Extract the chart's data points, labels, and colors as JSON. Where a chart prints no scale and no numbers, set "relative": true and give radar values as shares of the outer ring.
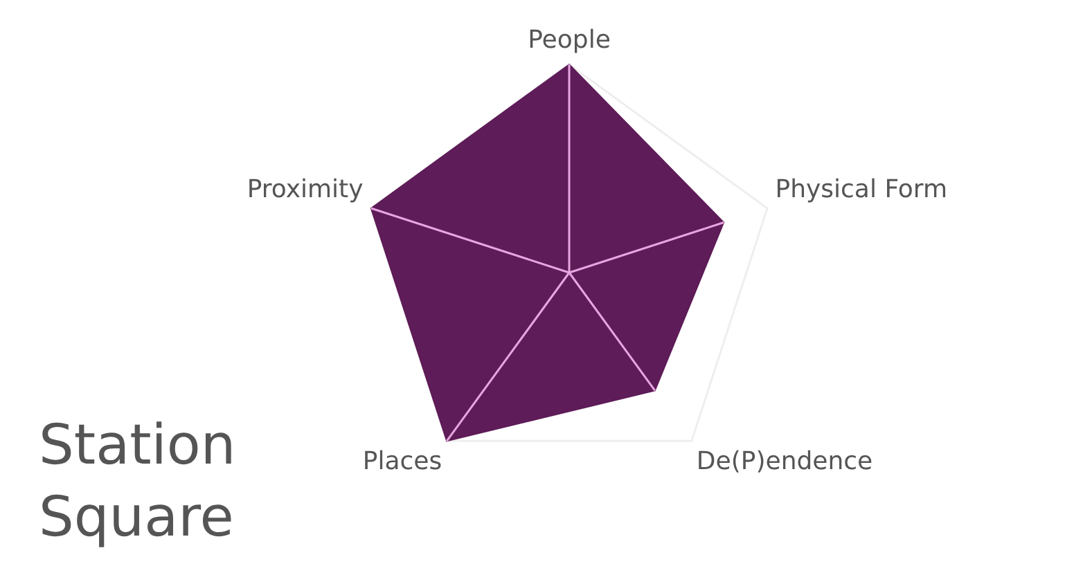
{
  "chart_data": {
    "type": "radar",
    "title": "Station Square",
    "categories": [
      "People",
      "Physical Form",
      "De(P)endence",
      "Places",
      "Proximity"
    ],
    "relative": true,
    "grid": true,
    "legend": false,
    "series": [
      {
        "color": "#5e1c58",
        "values": [
          1,
          0.78,
          0.7,
          1,
          1
        ]
      }
    ]
  }
}
